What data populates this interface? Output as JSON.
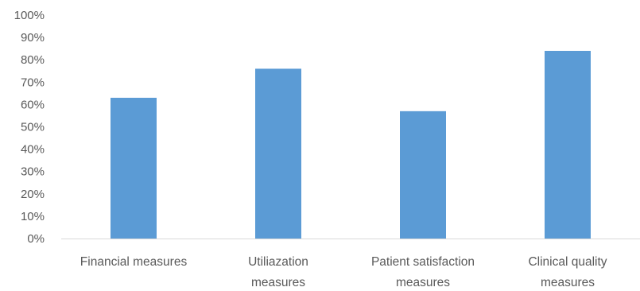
{
  "chart_data": {
    "type": "bar",
    "title": "",
    "xlabel": "",
    "ylabel": "",
    "categories": [
      [
        "Financial measures"
      ],
      [
        "Utiliazation",
        "measures"
      ],
      [
        "Patient satisfaction",
        "measures"
      ],
      [
        "Clinical quality",
        "measures"
      ]
    ],
    "values": [
      0.63,
      0.76,
      0.57,
      0.84
    ],
    "ylim": [
      0,
      1
    ],
    "yticks": [
      0,
      0.1,
      0.2,
      0.3,
      0.4,
      0.5,
      0.6,
      0.7,
      0.8,
      0.9,
      1.0
    ],
    "ytick_labels": [
      "0%",
      "10%",
      "20%",
      "30%",
      "40%",
      "50%",
      "60%",
      "70%",
      "80%",
      "90%",
      "100%"
    ],
    "grid": false,
    "legend": false,
    "colors": {
      "bar": "#5B9BD5",
      "axis": "#D9D9D9",
      "text": "#595959"
    }
  }
}
